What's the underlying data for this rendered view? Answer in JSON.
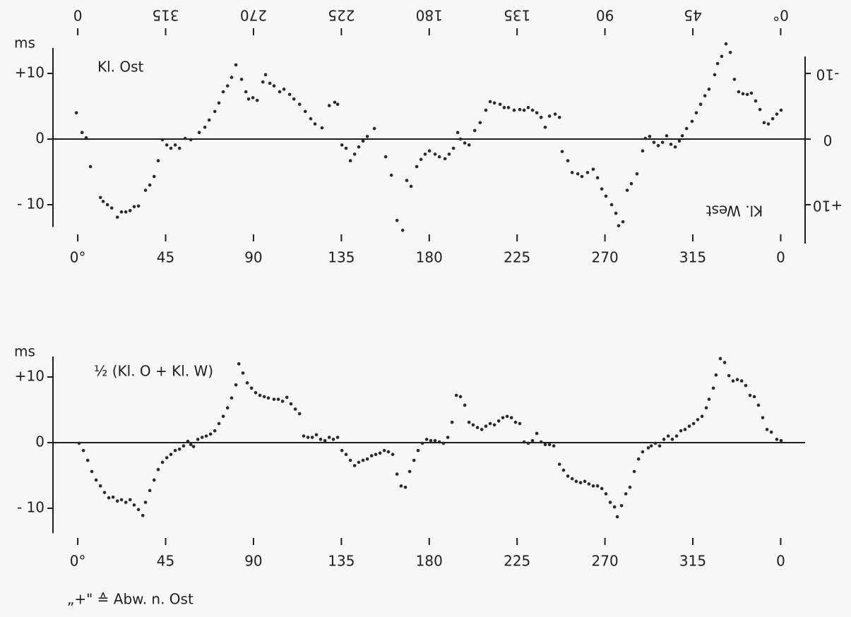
{
  "chart_data": [
    {
      "type": "scatter",
      "ylabel": "ms",
      "annotations": [
        "Kl. Ost",
        "Kl. West"
      ],
      "color": "#2a2a2a",
      "zero_line": true,
      "xlim": [
        -12.7,
        372.5
      ],
      "xticks": [
        {
          "value": 0,
          "label": "0°"
        },
        45,
        90,
        135,
        180,
        225,
        270,
        315,
        {
          "value": 360,
          "label": "0"
        }
      ],
      "ylim": [
        -13.4,
        15
      ],
      "yticks": [
        {
          "value": 10,
          "label": "+10"
        },
        0,
        {
          "value": -10,
          "label": "- 10"
        }
      ],
      "x2lim": [
        372.7,
        -12.5
      ],
      "x2ticks": [
        {
          "value": 360,
          "label": "0"
        },
        315,
        270,
        225,
        180,
        135,
        90,
        45,
        {
          "value": 0,
          "label": "0°"
        }
      ],
      "y2lim": [
        13.4,
        -15
      ],
      "y2ticks": [
        {
          "value": -10,
          "label": "-10"
        },
        0,
        {
          "value": 10,
          "label": "+10"
        }
      ],
      "x": [
        -0.7,
        2.2,
        4.3,
        6.5,
        11.6,
        13.0,
        15.2,
        17.4,
        20.3,
        22.4,
        24.6,
        26.8,
        28.9,
        31.1,
        34.7,
        36.9,
        39.1,
        41.2,
        43.4,
        45.6,
        47.7,
        49.9,
        52.1,
        55.0,
        57.9,
        62.2,
        65.1,
        67.3,
        70.2,
        72.3,
        74.5,
        76.7,
        78.8,
        81.0,
        83.9,
        86.1,
        87.5,
        89.7,
        91.9,
        94.8,
        96.2,
        98.4,
        100.5,
        103.4,
        105.6,
        108.5,
        110.7,
        113.6,
        116.5,
        119.3,
        121.5,
        125.1,
        128.8,
        131.6,
        133.1,
        135.3,
        137.4,
        139.6,
        141.8,
        143.9,
        146.1,
        148.3,
        151.9,
        157.7,
        160.6,
        163.5,
        166.4,
        168.5,
        170.7,
        173.6,
        175.8,
        177.9,
        180.1,
        183.0,
        185.2,
        188.1,
        190.2,
        192.4,
        194.6,
        196.0,
        198.2,
        200.4,
        203.3,
        206.1,
        209.0,
        211.2,
        213.4,
        216.3,
        218.4,
        220.6,
        223.5,
        226.4,
        228.6,
        230.7,
        232.9,
        235.1,
        237.3,
        239.4,
        241.6,
        244.5,
        246.7,
        248.1,
        251.0,
        253.2,
        256.1,
        258.2,
        261.1,
        264.0,
        266.2,
        268.4,
        270.5,
        273.4,
        275.6,
        277.0,
        279.2,
        281.4,
        283.5,
        286.4,
        289.3,
        290.7,
        292.9,
        295.1,
        297.3,
        299.5,
        301.6,
        303.8,
        306.0,
        308.1,
        309.6,
        311.8,
        314.6,
        316.8,
        319.0,
        321.2,
        323.3,
        326.2,
        327.7,
        329.8,
        332.0,
        334.2,
        336.3,
        338.5,
        340.7,
        342.9,
        345.0,
        347.2,
        349.4,
        351.5,
        353.7,
        355.9,
        358.0,
        360.2
      ],
      "values": [
        4.0,
        1.0,
        0.2,
        -4.2,
        -8.9,
        -9.5,
        -10.0,
        -10.5,
        -11.9,
        -11.1,
        -11.1,
        -10.9,
        -10.3,
        -10.2,
        -7.8,
        -7.0,
        -5.7,
        -3.3,
        -0.1,
        -0.9,
        -1.4,
        -0.9,
        -1.4,
        0.1,
        -0.1,
        1.0,
        1.8,
        2.9,
        4.2,
        5.5,
        7.2,
        8.1,
        9.4,
        11.3,
        9.1,
        7.2,
        6.1,
        6.3,
        5.9,
        8.7,
        9.8,
        8.5,
        8.1,
        7.2,
        7.6,
        6.8,
        6.1,
        5.3,
        4.2,
        3.1,
        2.3,
        1.7,
        5.1,
        5.6,
        5.3,
        -0.9,
        -1.4,
        -3.3,
        -2.3,
        -1.2,
        -0.3,
        0.4,
        1.6,
        -2.7,
        -5.5,
        -12.4,
        -13.9,
        -6.3,
        -7.2,
        -4.2,
        -3.1,
        -2.3,
        -1.8,
        -2.3,
        -2.7,
        -3.0,
        -2.3,
        -1.4,
        1.0,
        0.0,
        -0.6,
        -0.9,
        1.3,
        2.5,
        4.4,
        5.7,
        5.5,
        5.3,
        4.8,
        4.8,
        4.4,
        4.5,
        4.4,
        4.8,
        4.4,
        4.0,
        3.3,
        1.8,
        3.5,
        3.8,
        3.3,
        -1.9,
        -3.3,
        -5.1,
        -5.3,
        -5.7,
        -5.1,
        -4.6,
        -5.9,
        -7.6,
        -8.7,
        -10.0,
        -11.3,
        -13.2,
        -12.6,
        -7.8,
        -6.8,
        -5.3,
        -1.8,
        0.1,
        0.4,
        -0.5,
        -1.0,
        -0.5,
        0.5,
        -0.8,
        -1.2,
        -0.3,
        0.5,
        1.6,
        2.7,
        4.0,
        5.3,
        6.6,
        7.6,
        9.8,
        11.5,
        12.6,
        14.5,
        13.2,
        9.1,
        7.2,
        6.9,
        6.8,
        7.0,
        5.8,
        4.5,
        2.5,
        2.3,
        3.1,
        3.8,
        4.4
      ]
    },
    {
      "type": "scatter",
      "ylabel": "ms",
      "annotations": [
        "½ (Kl. O + Kl. W)"
      ],
      "color": "#2a2a2a",
      "zero_line": true,
      "xlim": [
        -12.7,
        372.5
      ],
      "xticks": [
        {
          "value": 0,
          "label": "0°"
        },
        45,
        90,
        135,
        180,
        225,
        270,
        315,
        {
          "value": 360,
          "label": "0"
        }
      ],
      "ylim": [
        -13.8,
        13.3
      ],
      "yticks": [
        {
          "value": 10,
          "label": "+10"
        },
        0,
        {
          "value": -10,
          "label": "- 10"
        }
      ],
      "x": [
        0.7,
        2.9,
        5.1,
        7.2,
        9.4,
        11.6,
        13.7,
        15.9,
        18.1,
        20.3,
        22.4,
        24.6,
        26.8,
        28.9,
        31.1,
        33.3,
        34.7,
        36.9,
        39.1,
        41.2,
        43.4,
        45.6,
        47.7,
        49.9,
        52.1,
        54.2,
        56.4,
        57.9,
        59.3,
        61.5,
        63.7,
        65.8,
        68.0,
        70.2,
        72.3,
        74.5,
        76.7,
        78.8,
        81.0,
        82.5,
        84.6,
        86.8,
        89.0,
        91.1,
        93.3,
        95.5,
        97.6,
        100.5,
        102.7,
        104.9,
        107.1,
        109.2,
        111.4,
        113.6,
        115.7,
        117.9,
        120.1,
        122.2,
        124.4,
        126.6,
        128.8,
        130.9,
        133.1,
        135.3,
        137.4,
        139.6,
        141.8,
        143.9,
        146.1,
        148.3,
        150.5,
        152.6,
        154.8,
        157.0,
        159.1,
        161.3,
        163.5,
        165.6,
        167.8,
        170.0,
        172.2,
        174.3,
        176.5,
        178.7,
        180.8,
        183.0,
        185.2,
        187.3,
        189.5,
        191.7,
        193.9,
        196.0,
        198.2,
        200.4,
        202.5,
        204.7,
        206.9,
        209.0,
        211.2,
        213.4,
        215.6,
        217.7,
        219.9,
        222.1,
        224.2,
        226.4,
        228.6,
        230.7,
        232.9,
        235.1,
        237.3,
        239.4,
        241.6,
        243.8,
        246.7,
        248.8,
        251.0,
        253.2,
        255.3,
        257.5,
        259.7,
        261.8,
        264.0,
        266.2,
        268.4,
        270.5,
        272.7,
        274.9,
        276.3,
        278.5,
        280.7,
        282.8,
        285.0,
        287.2,
        289.3,
        292.2,
        293.7,
        295.8,
        298.0,
        300.2,
        302.4,
        304.5,
        306.7,
        308.9,
        311.0,
        313.2,
        315.4,
        317.5,
        319.7,
        321.9,
        323.3,
        325.5,
        326.9,
        329.1,
        331.3,
        333.5,
        335.6,
        337.8,
        340.0,
        342.1,
        344.3,
        346.5,
        348.6,
        350.8,
        353.0,
        355.2,
        358.0,
        360.2
      ],
      "values": [
        -0.1,
        -1.2,
        -2.7,
        -4.4,
        -5.7,
        -6.6,
        -7.6,
        -8.4,
        -8.3,
        -8.9,
        -8.7,
        -9.1,
        -8.7,
        -9.5,
        -10.2,
        -11.1,
        -9.1,
        -7.3,
        -5.7,
        -4.1,
        -3.0,
        -2.3,
        -1.8,
        -1.2,
        -1.0,
        -0.5,
        0.2,
        -0.3,
        -0.6,
        0.5,
        0.8,
        1.0,
        1.3,
        1.8,
        2.9,
        4.0,
        5.3,
        6.8,
        8.8,
        12.0,
        10.6,
        9.1,
        8.3,
        7.6,
        7.2,
        7.0,
        6.8,
        6.6,
        6.6,
        6.3,
        6.9,
        5.9,
        5.1,
        4.4,
        1.0,
        0.8,
        0.8,
        1.2,
        0.5,
        0.3,
        0.8,
        0.5,
        0.8,
        -1.2,
        -1.8,
        -2.7,
        -3.5,
        -3.0,
        -2.7,
        -2.5,
        -2.0,
        -1.8,
        -1.6,
        -1.2,
        -1.4,
        -1.8,
        -4.8,
        -6.6,
        -6.8,
        -4.4,
        -2.7,
        -1.2,
        -0.1,
        0.5,
        0.3,
        0.3,
        0.1,
        -0.1,
        0.8,
        3.1,
        7.2,
        7.0,
        5.7,
        3.1,
        2.7,
        2.3,
        2.0,
        2.5,
        2.9,
        2.7,
        3.3,
        3.8,
        4.0,
        3.8,
        3.1,
        2.9,
        0.1,
        -0.1,
        0.3,
        1.4,
        0.1,
        -0.3,
        -0.3,
        -0.5,
        -3.3,
        -4.2,
        -5.1,
        -5.5,
        -5.9,
        -6.1,
        -5.9,
        -6.3,
        -6.6,
        -6.6,
        -7.0,
        -7.8,
        -9.1,
        -9.8,
        -11.3,
        -9.6,
        -7.8,
        -6.8,
        -4.4,
        -2.5,
        -1.4,
        -0.8,
        -0.5,
        -0.1,
        -0.5,
        0.5,
        1.0,
        0.5,
        1.0,
        1.8,
        2.0,
        2.5,
        2.9,
        3.5,
        4.0,
        5.3,
        6.6,
        8.3,
        10.3,
        12.8,
        12.2,
        10.2,
        9.4,
        9.6,
        9.4,
        8.7,
        7.2,
        7.0,
        5.7,
        3.8,
        2.0,
        1.6,
        0.5,
        0.3
      ]
    }
  ],
  "footnote": "„+\" ≙ Abw. n. Ost"
}
